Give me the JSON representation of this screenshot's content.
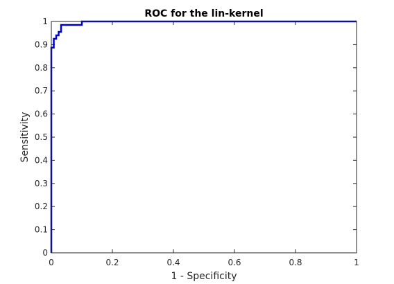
{
  "chart_data": {
    "type": "line",
    "title": "ROC for the lin-kernel",
    "xlabel": "1 - Specificity",
    "ylabel": "Sensitivity",
    "xlim": [
      0,
      1
    ],
    "ylim": [
      0,
      1
    ],
    "x_ticks": [
      "0",
      "0.2",
      "0.4",
      "0.6",
      "0.8",
      "1"
    ],
    "y_ticks": [
      "0",
      "0.1",
      "0.2",
      "0.3",
      "0.4",
      "0.5",
      "0.6",
      "0.7",
      "0.8",
      "0.9",
      "1"
    ],
    "grid": false,
    "line_color": "#0000cc",
    "series": [
      {
        "x": [
          0,
          0,
          0.008,
          0.008,
          0.016,
          0.016,
          0.024,
          0.024,
          0.032,
          0.032,
          0.1,
          0.1,
          1
        ],
        "y": [
          0,
          0.887,
          0.887,
          0.925,
          0.925,
          0.94,
          0.94,
          0.955,
          0.955,
          0.985,
          0.985,
          1,
          1
        ]
      }
    ]
  }
}
